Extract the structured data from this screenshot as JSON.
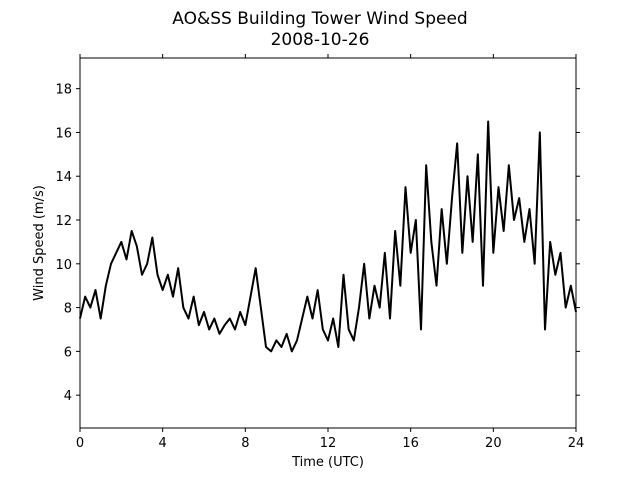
{
  "chart_data": {
    "type": "line",
    "title": "AO&SS Building Tower Wind Speed",
    "subtitle": "2008-10-26",
    "xlabel": "Time (UTC)",
    "ylabel": "Wind Speed (m/s)",
    "xlim": [
      0,
      24
    ],
    "xticks": [
      0,
      4,
      8,
      12,
      16,
      20,
      24
    ],
    "ylim": [
      2.5,
      19.4
    ],
    "yticks": [
      4,
      6,
      8,
      10,
      12,
      14,
      16,
      18
    ],
    "grid": false,
    "x": [
      0,
      0.25,
      0.5,
      0.75,
      1,
      1.25,
      1.5,
      1.75,
      2,
      2.25,
      2.5,
      2.75,
      3,
      3.25,
      3.5,
      3.75,
      4,
      4.25,
      4.5,
      4.75,
      5,
      5.25,
      5.5,
      5.75,
      6,
      6.25,
      6.5,
      6.75,
      7,
      7.25,
      7.5,
      7.75,
      8,
      8.25,
      8.5,
      8.75,
      9,
      9.25,
      9.5,
      9.75,
      10,
      10.25,
      10.5,
      10.75,
      11,
      11.25,
      11.5,
      11.75,
      12,
      12.25,
      12.5,
      12.75,
      13,
      13.25,
      13.5,
      13.75,
      14,
      14.25,
      14.5,
      14.75,
      15,
      15.25,
      15.5,
      15.75,
      16,
      16.25,
      16.5,
      16.75,
      17,
      17.25,
      17.5,
      17.75,
      18,
      18.25,
      18.5,
      18.75,
      19,
      19.25,
      19.5,
      19.75,
      20,
      20.25,
      20.5,
      20.75,
      21,
      21.25,
      21.5,
      21.75,
      22,
      22.25,
      22.5,
      22.75,
      23,
      23.25,
      23.5,
      23.75,
      24
    ],
    "series": [
      {
        "color": "#000000",
        "values": [
          7.5,
          8.5,
          8.0,
          8.8,
          7.5,
          9.0,
          10.0,
          10.5,
          11.0,
          10.2,
          11.5,
          10.8,
          9.5,
          10.0,
          11.2,
          9.5,
          8.8,
          9.5,
          8.5,
          9.8,
          8.0,
          7.5,
          8.5,
          7.2,
          7.8,
          7.0,
          7.5,
          6.8,
          7.2,
          7.5,
          7.0,
          7.8,
          7.2,
          8.5,
          9.8,
          8.0,
          6.2,
          6.0,
          6.5,
          6.2,
          6.8,
          6.0,
          6.5,
          7.5,
          8.5,
          7.5,
          8.8,
          7.0,
          6.5,
          7.5,
          6.2,
          9.5,
          7.0,
          6.5,
          8.0,
          10.0,
          7.5,
          9.0,
          8.0,
          10.5,
          7.5,
          11.5,
          9.0,
          13.5,
          10.5,
          12.0,
          7.0,
          14.5,
          11.0,
          9.0,
          12.5,
          10.0,
          13.0,
          15.5,
          10.5,
          14.0,
          11.0,
          15.0,
          9.0,
          16.5,
          10.5,
          13.5,
          11.5,
          14.5,
          12.0,
          13.0,
          11.0,
          12.5,
          10.0,
          16.0,
          7.0,
          11.0,
          9.5,
          10.5,
          8.0,
          9.0,
          7.8
        ]
      }
    ]
  }
}
